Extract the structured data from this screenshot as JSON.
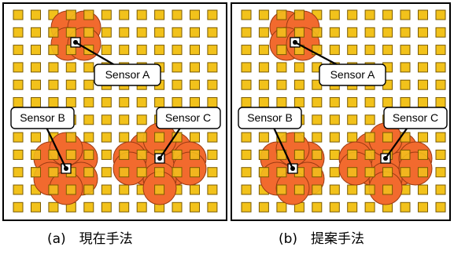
{
  "colors": {
    "grid_square": "#f2c21b",
    "sensor_circle": "#f26a2e",
    "sensor_circle_stroke": "#9a3a12"
  },
  "panels": [
    {
      "id": "current",
      "caption": "(a)　現在手法",
      "sensors": [
        {
          "label": "Sensor A",
          "circles": [
            [
              86,
              35
            ],
            [
              107,
              35
            ],
            [
              86,
              56
            ],
            [
              107,
              56
            ]
          ]
        },
        {
          "label": "Sensor B",
          "circles": [
            [
              84,
              215
            ],
            [
              103,
              202
            ],
            [
              103,
              228
            ],
            [
              64,
              202
            ],
            [
              64,
              228
            ],
            [
              84,
              190
            ],
            [
              84,
              240
            ]
          ]
        },
        {
          "label": "Sensor C",
          "circles": [
            [
              203,
              202
            ],
            [
              222,
              190
            ],
            [
              222,
              215
            ],
            [
              185,
              190
            ],
            [
              185,
              215
            ],
            [
              203,
              178
            ],
            [
              203,
              228
            ],
            [
              241,
              202
            ],
            [
              165,
              202
            ],
            [
              241,
              215
            ],
            [
              165,
              215
            ],
            [
              203,
              240
            ]
          ]
        }
      ]
    },
    {
      "id": "proposed",
      "caption": "(b)　提案手法",
      "sensors": [
        {
          "label": "Sensor A",
          "circles": [
            [
              364,
              35
            ],
            [
              385,
              35
            ],
            [
              364,
              56
            ],
            [
              385,
              56
            ]
          ]
        },
        {
          "label": "Sensor B",
          "circles": [
            [
              372,
              215
            ],
            [
              391,
              202
            ],
            [
              391,
              228
            ],
            [
              352,
              202
            ],
            [
              352,
              228
            ],
            [
              372,
              190
            ],
            [
              372,
              240
            ]
          ]
        },
        {
          "label": "Sensor C",
          "circles": [
            [
              490,
              202
            ],
            [
              509,
              190
            ],
            [
              509,
              215
            ],
            [
              472,
              190
            ],
            [
              472,
              215
            ],
            [
              490,
              178
            ],
            [
              490,
              228
            ],
            [
              528,
              202
            ],
            [
              452,
              202
            ],
            [
              528,
              215
            ],
            [
              452,
              215
            ],
            [
              490,
              240
            ]
          ]
        }
      ]
    }
  ]
}
